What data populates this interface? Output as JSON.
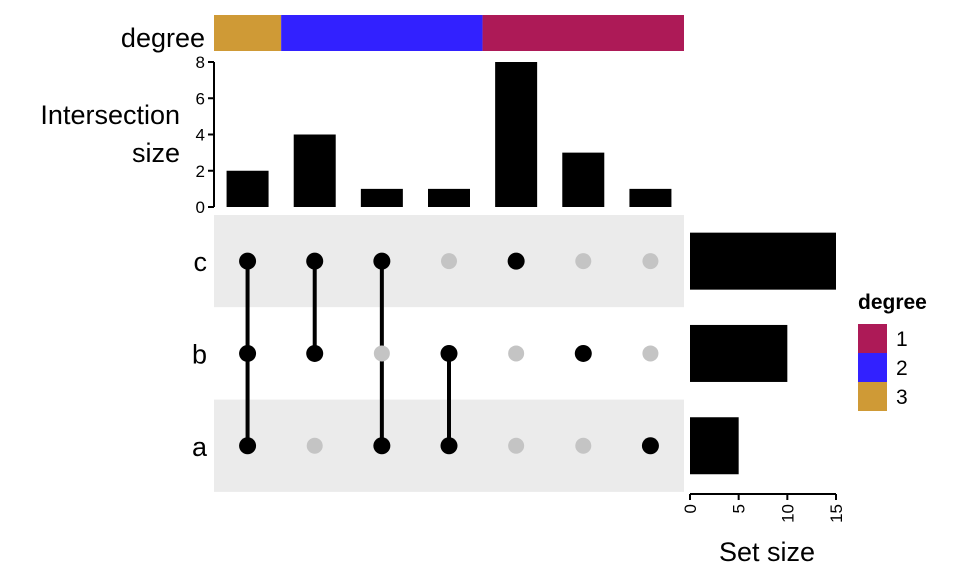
{
  "chart_data": {
    "type": "bar",
    "degree_annotation": {
      "label": "degree",
      "segments": [
        {
          "degree": "3",
          "from": 0,
          "to": 1
        },
        {
          "degree": "2",
          "from": 1,
          "to": 4
        },
        {
          "degree": "1",
          "from": 4,
          "to": 7
        }
      ]
    },
    "intersection_size": {
      "ylabel": "Intersection\nsize",
      "ylim": [
        0,
        8
      ],
      "ticks": [
        0,
        2,
        4,
        6,
        8
      ],
      "values": [
        2,
        4,
        1,
        1,
        8,
        3,
        1
      ]
    },
    "sets": [
      "c",
      "b",
      "a"
    ],
    "matrix": [
      [
        "a",
        "b",
        "c"
      ],
      [
        "b",
        "c"
      ],
      [
        "a",
        "c"
      ],
      [
        "a",
        "b"
      ],
      [
        "c"
      ],
      [
        "b"
      ],
      [
        "a"
      ]
    ],
    "set_size": {
      "xlabel": "Set size",
      "xlim": [
        0,
        15
      ],
      "ticks": [
        0,
        5,
        10,
        15
      ],
      "values": {
        "c": 15,
        "b": 10,
        "a": 5
      }
    },
    "legend": {
      "title": "degree",
      "placement": "right",
      "entries": [
        {
          "label": "1",
          "color": "#AD1A57"
        },
        {
          "label": "2",
          "color": "#3221FF"
        },
        {
          "label": "3",
          "color": "#CF9A36"
        }
      ]
    },
    "colors": {
      "active_dot": "#000000",
      "inactive_dot": "#C4C4C4",
      "stripe": "#EBEBEB",
      "bar": "#000000"
    }
  }
}
